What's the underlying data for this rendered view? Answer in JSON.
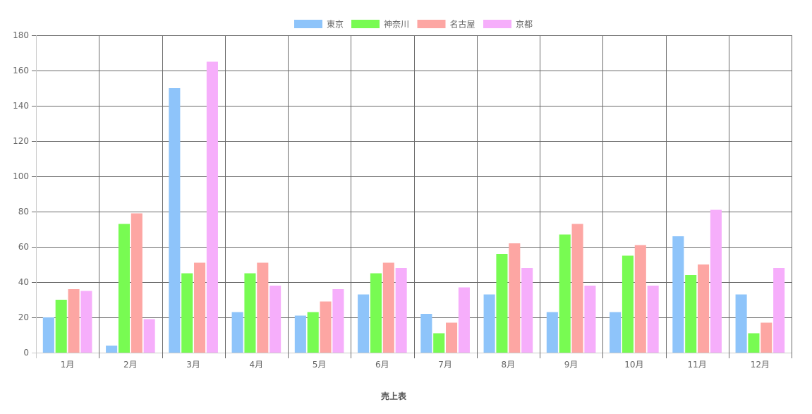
{
  "chart_data": {
    "type": "bar",
    "categories": [
      "1月",
      "2月",
      "3月",
      "4月",
      "5月",
      "6月",
      "7月",
      "8月",
      "9月",
      "10月",
      "11月",
      "12月"
    ],
    "series": [
      {
        "name": "東京",
        "color": "#8ec4fa",
        "values": [
          20,
          4,
          150,
          23,
          21,
          33,
          22,
          33,
          23,
          23,
          66,
          33
        ]
      },
      {
        "name": "神奈川",
        "color": "#78fb52",
        "values": [
          30,
          73,
          45,
          45,
          23,
          45,
          11,
          56,
          67,
          55,
          44,
          11
        ]
      },
      {
        "name": "名古屋",
        "color": "#fda6a3",
        "values": [
          36,
          79,
          51,
          51,
          29,
          51,
          17,
          62,
          73,
          61,
          50,
          17
        ]
      },
      {
        "name": "京都",
        "color": "#f6aefb",
        "values": [
          35,
          19,
          165,
          38,
          36,
          48,
          37,
          48,
          38,
          38,
          81,
          48
        ]
      }
    ],
    "xlabel": "売上表",
    "ylabel": "",
    "ylim": [
      0,
      180
    ],
    "yticks": [
      "0",
      "20",
      "40",
      "60",
      "80",
      "100",
      "120",
      "140",
      "160",
      "180"
    ],
    "grid": true,
    "legend_position": "top-center"
  }
}
